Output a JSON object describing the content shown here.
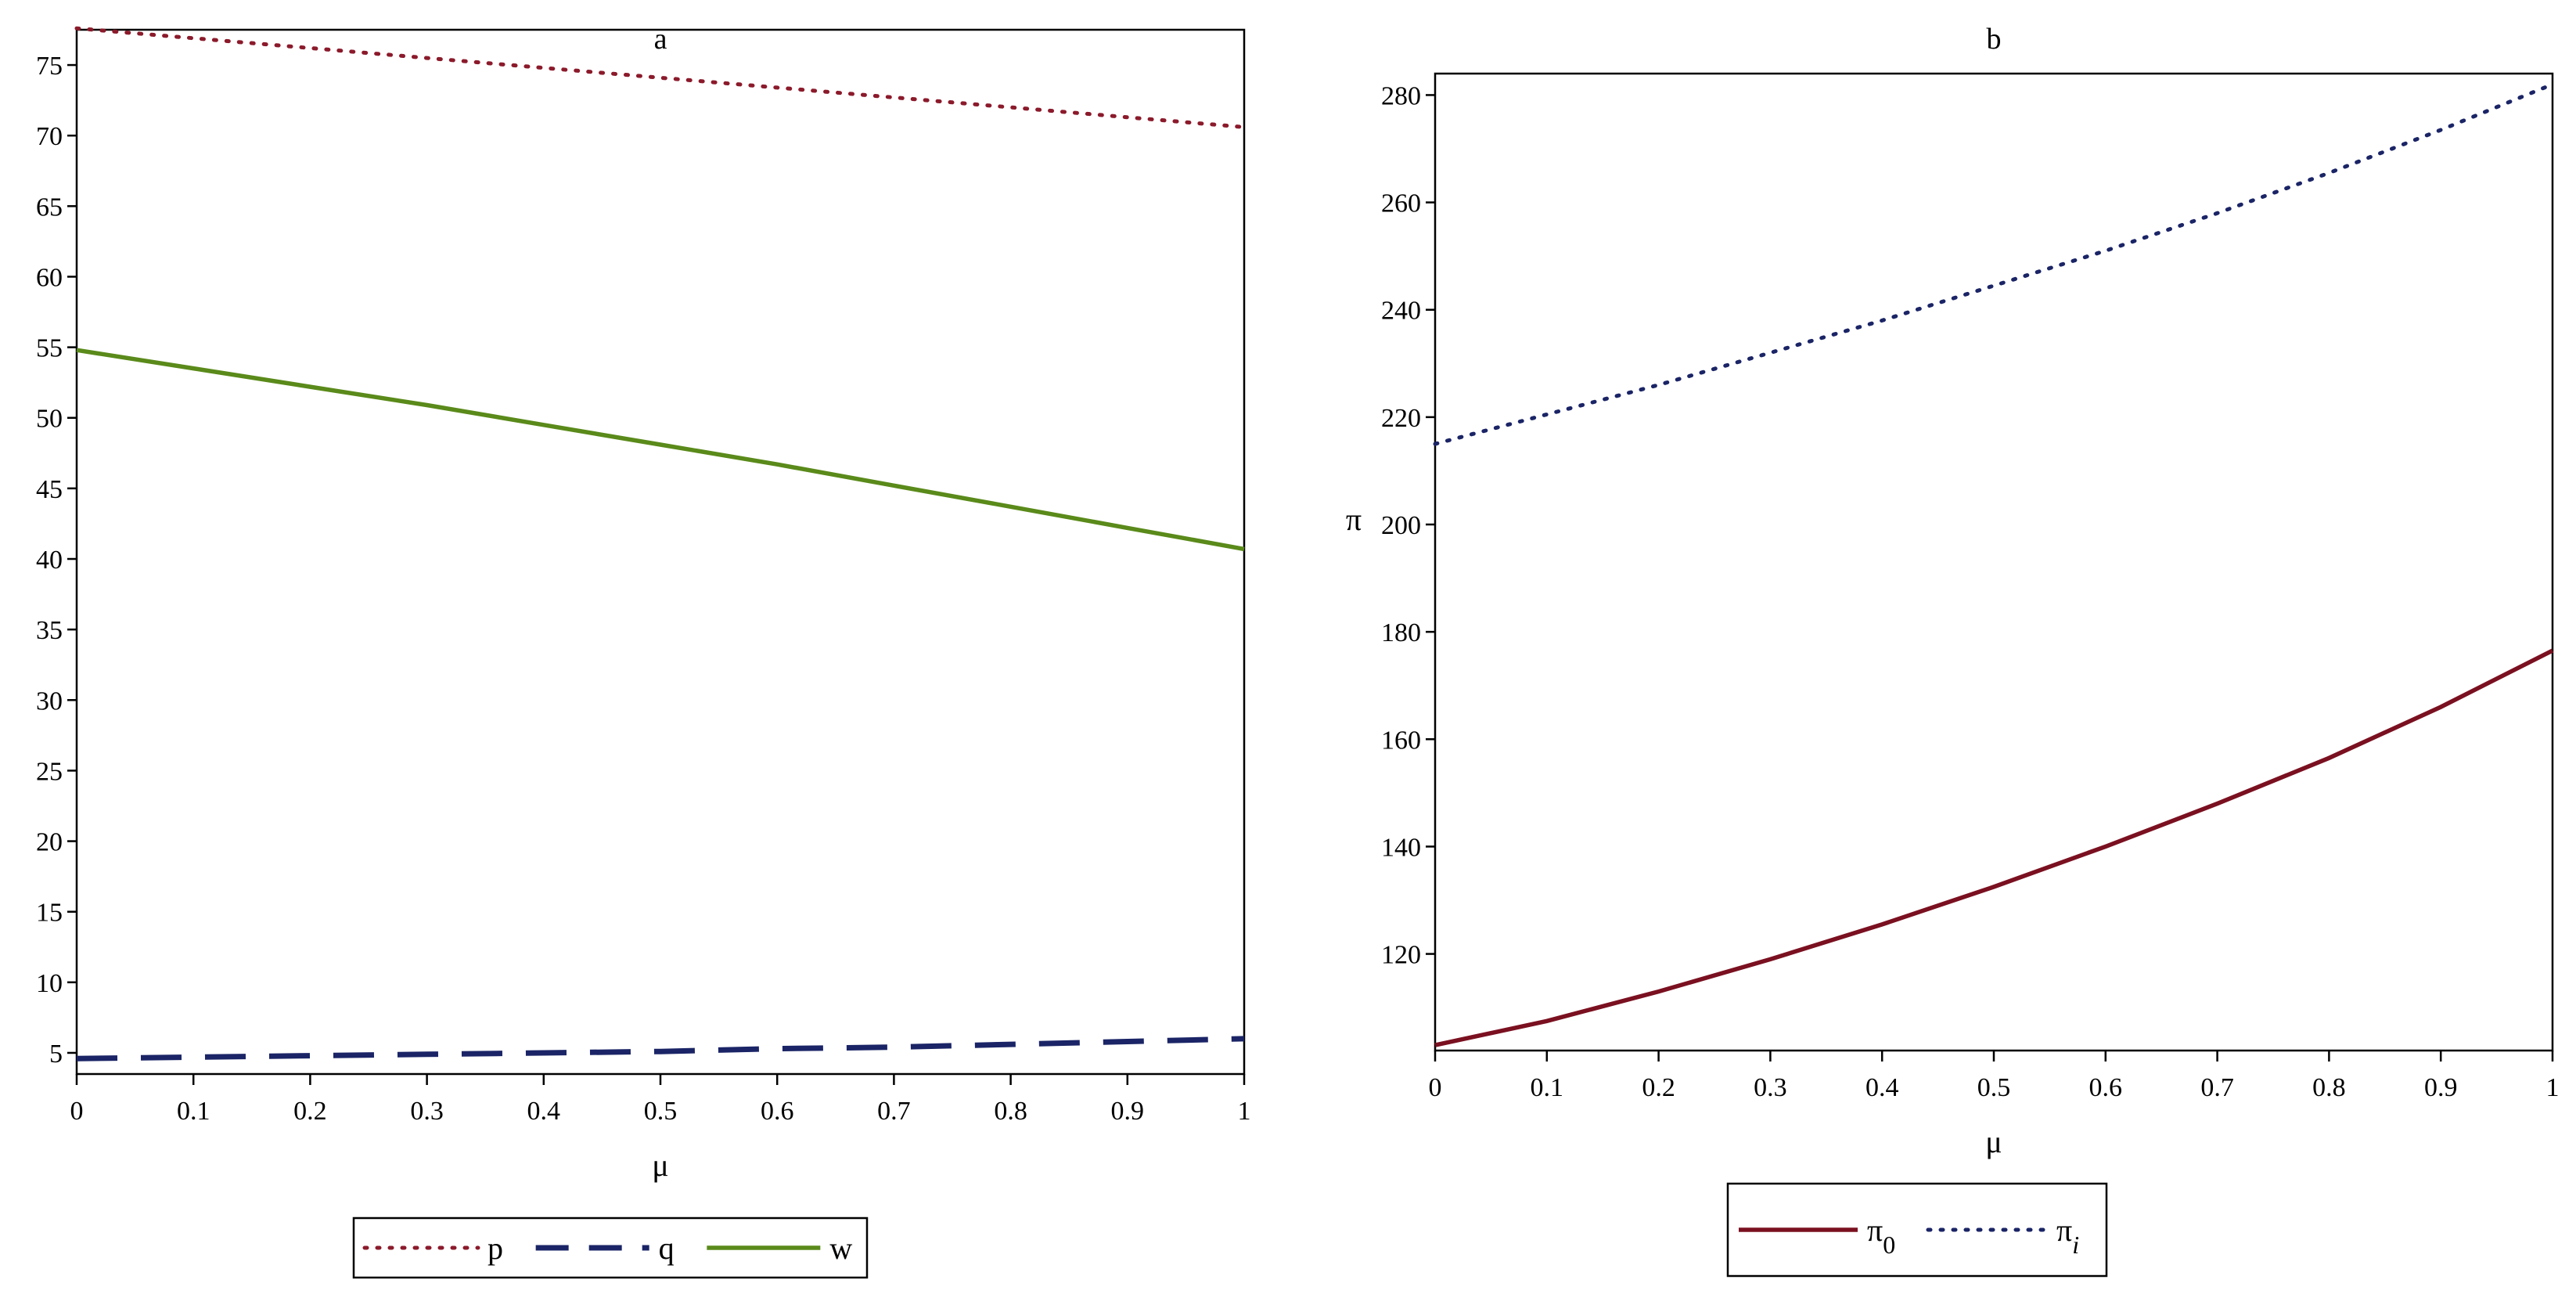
{
  "chart_data": [
    {
      "type": "line",
      "title": "a",
      "xlabel": "μ",
      "ylabel": "",
      "xlim": [
        0,
        1
      ],
      "ylim": [
        3.5,
        77.5
      ],
      "xticks": [
        "0",
        "0.1",
        "0.2",
        "0.3",
        "0.4",
        "0.5",
        "0.6",
        "0.7",
        "0.8",
        "0.9",
        "1"
      ],
      "yticks": [
        "5",
        "10",
        "15",
        "20",
        "25",
        "30",
        "35",
        "40",
        "45",
        "50",
        "55",
        "60",
        "65",
        "70",
        "75"
      ],
      "legend_position": "bottom-center",
      "series": [
        {
          "name": "p",
          "style": "dotted",
          "color": "#8b1a2b",
          "x": [
            0,
            0.1,
            0.2,
            0.3,
            0.4,
            0.5,
            0.6,
            0.7,
            0.8,
            0.9,
            1
          ],
          "y": [
            77.6,
            76.9,
            76.2,
            75.5,
            74.8,
            74.1,
            73.4,
            72.7,
            72.0,
            71.3,
            70.6
          ]
        },
        {
          "name": "q",
          "style": "dashed",
          "color": "#1a2466",
          "x": [
            0,
            0.1,
            0.2,
            0.3,
            0.4,
            0.5,
            0.6,
            0.7,
            0.8,
            0.9,
            1
          ],
          "y": [
            4.6,
            4.7,
            4.8,
            4.9,
            5.0,
            5.1,
            5.3,
            5.4,
            5.6,
            5.8,
            6.0
          ]
        },
        {
          "name": "w",
          "style": "solid",
          "color": "#5a8a1a",
          "x": [
            0,
            0.1,
            0.2,
            0.3,
            0.4,
            0.5,
            0.6,
            0.7,
            0.8,
            0.9,
            1
          ],
          "y": [
            54.8,
            53.5,
            52.2,
            50.9,
            49.5,
            48.1,
            46.7,
            45.2,
            43.7,
            42.2,
            40.7
          ]
        }
      ]
    },
    {
      "type": "line",
      "title": "b",
      "xlabel": "μ",
      "ylabel": "π",
      "xlim": [
        0,
        1
      ],
      "ylim": [
        102,
        284
      ],
      "xticks": [
        "0",
        "0.1",
        "0.2",
        "0.3",
        "0.4",
        "0.5",
        "0.6",
        "0.7",
        "0.8",
        "0.9",
        "1"
      ],
      "yticks": [
        "120",
        "140",
        "160",
        "180",
        "200",
        "220",
        "240",
        "260",
        "280"
      ],
      "legend_position": "bottom-center",
      "series": [
        {
          "name": "π",
          "subscript": "0",
          "style": "solid",
          "color": "#7a1020",
          "x": [
            0,
            0.1,
            0.2,
            0.3,
            0.4,
            0.5,
            0.6,
            0.7,
            0.8,
            0.9,
            1
          ],
          "y": [
            103,
            107.5,
            113,
            119,
            125.5,
            132.5,
            140,
            148,
            156.5,
            166,
            176.5
          ]
        },
        {
          "name": "π",
          "subscript": "i",
          "style": "dotted",
          "color": "#1a2466",
          "x": [
            0,
            0.1,
            0.2,
            0.3,
            0.4,
            0.5,
            0.6,
            0.7,
            0.8,
            0.9,
            1
          ],
          "y": [
            215,
            220.5,
            226,
            232,
            238,
            244.5,
            251,
            258,
            265.5,
            273.5,
            282
          ]
        }
      ]
    }
  ]
}
